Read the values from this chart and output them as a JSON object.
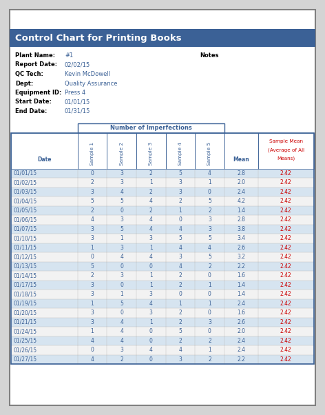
{
  "title": "Control Chart for Printing Books",
  "title_bg": "#3B6196",
  "title_color": "#FFFFFF",
  "info_labels": [
    "Plant Name:",
    "Report Date:",
    "QC Tech:",
    "Dept:",
    "Equipment ID:",
    "Start Date:",
    "End Date:"
  ],
  "info_values": [
    "#1",
    "02/02/15",
    "Kevin McDowell",
    "Quality Assurance",
    "Press 4",
    "01/01/15",
    "01/31/15"
  ],
  "notes_label": "Notes",
  "section_header": "Number of Imperfections",
  "dates": [
    "01/01/15",
    "01/02/15",
    "01/03/15",
    "01/04/15",
    "01/05/15",
    "01/06/15",
    "01/07/15",
    "01/10/15",
    "01/11/15",
    "01/12/15",
    "01/13/15",
    "01/14/15",
    "01/17/15",
    "01/18/15",
    "01/19/15",
    "01/20/15",
    "01/21/15",
    "01/24/15",
    "01/25/15",
    "01/26/15",
    "01/27/15"
  ],
  "data": [
    [
      0,
      3,
      2,
      5,
      4,
      2.8,
      2.42
    ],
    [
      2,
      3,
      1,
      3,
      1,
      2.0,
      2.42
    ],
    [
      3,
      4,
      2,
      3,
      0,
      2.4,
      2.42
    ],
    [
      5,
      5,
      4,
      2,
      5,
      4.2,
      2.42
    ],
    [
      2,
      0,
      2,
      1,
      2,
      1.4,
      2.42
    ],
    [
      4,
      3,
      4,
      0,
      3,
      2.8,
      2.42
    ],
    [
      3,
      5,
      4,
      4,
      3,
      3.8,
      2.42
    ],
    [
      3,
      1,
      3,
      5,
      5,
      3.4,
      2.42
    ],
    [
      1,
      3,
      1,
      4,
      4,
      2.6,
      2.42
    ],
    [
      0,
      4,
      4,
      3,
      5,
      3.2,
      2.42
    ],
    [
      5,
      0,
      0,
      4,
      2,
      2.2,
      2.42
    ],
    [
      2,
      3,
      1,
      2,
      0,
      1.6,
      2.42
    ],
    [
      3,
      0,
      1,
      2,
      1,
      1.4,
      2.42
    ],
    [
      3,
      1,
      3,
      0,
      0,
      1.4,
      2.42
    ],
    [
      1,
      5,
      4,
      1,
      1,
      2.4,
      2.42
    ],
    [
      3,
      0,
      3,
      2,
      0,
      1.6,
      2.42
    ],
    [
      3,
      4,
      1,
      2,
      3,
      2.6,
      2.42
    ],
    [
      1,
      4,
      0,
      5,
      0,
      2.0,
      2.42
    ],
    [
      4,
      4,
      0,
      2,
      2,
      2.4,
      2.42
    ],
    [
      0,
      3,
      4,
      4,
      1,
      2.4,
      2.42
    ],
    [
      4,
      2,
      0,
      3,
      2,
      2.2,
      2.42
    ]
  ],
  "header_blue": "#3B6196",
  "row_odd_bg": "#D6E4F0",
  "row_even_bg": "#F2F2F2",
  "date_col_color": "#3B6196",
  "mean_col_color": "#3B6196",
  "sample_mean_color": "#CC0000",
  "border_color": "#3B6196",
  "info_label_color": "#000000",
  "info_value_color": "#3B6196",
  "bg_color": "#FFFFFF",
  "outer_bg": "#D4D4D4",
  "page_border_color": "#808080"
}
